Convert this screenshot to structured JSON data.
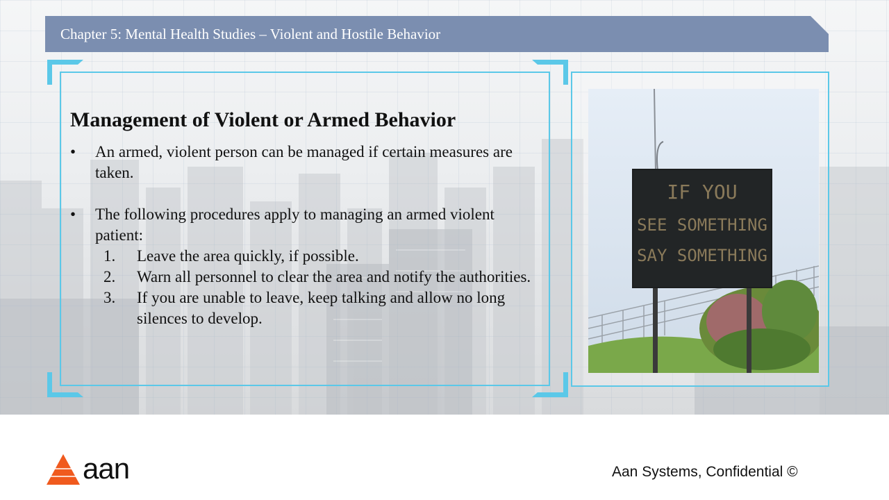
{
  "header": {
    "title": "Chapter 5: Mental Health Studies – Violent and Hostile Behavior"
  },
  "content": {
    "heading": "Management of Violent or Armed Behavior",
    "bullet_symbol": "•",
    "bullets": [
      {
        "text": "An armed, violent person can be managed if certain measures are taken."
      },
      {
        "text": "The following procedures apply to managing an armed violent patient:"
      }
    ],
    "steps": [
      {
        "num": "1.",
        "text": "Leave the area quickly, if possible."
      },
      {
        "num": "2.",
        "text": "Warn all personnel to clear the area and notify the authorities."
      },
      {
        "num": "3.",
        "text": "If you are unable to leave, keep talking and allow no long silences to develop."
      }
    ]
  },
  "photo": {
    "sign_lines": [
      "IF YOU",
      "SEE SOMETHING",
      "SAY SOMETHING"
    ]
  },
  "footer": {
    "logo_text": "aan",
    "confidential": "Aan Systems, Confidential ©"
  },
  "colors": {
    "banner": "#7b8eb0",
    "frame": "#5bc8e8",
    "logo": "#f05a1e"
  }
}
